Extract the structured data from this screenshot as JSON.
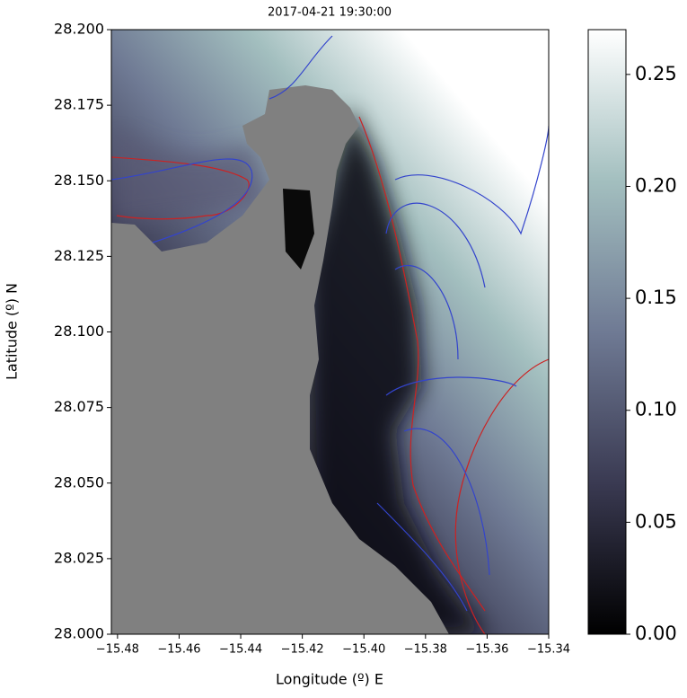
{
  "chart_data": {
    "type": "map",
    "title": "2017-04-21 19:30:00",
    "xlabel": "Longitude (º) E",
    "ylabel": "Latitude (º) N",
    "xlim": [
      -15.482,
      -15.34
    ],
    "ylim": [
      28.0,
      28.2
    ],
    "xticks": [
      {
        "value": -15.48,
        "label": "−15.48"
      },
      {
        "value": -15.46,
        "label": "−15.46"
      },
      {
        "value": -15.44,
        "label": "−15.44"
      },
      {
        "value": -15.42,
        "label": "−15.42"
      },
      {
        "value": -15.4,
        "label": "−15.40"
      },
      {
        "value": -15.38,
        "label": "−15.38"
      },
      {
        "value": -15.36,
        "label": "−15.36"
      },
      {
        "value": -15.34,
        "label": "−15.34"
      }
    ],
    "yticks": [
      {
        "value": 28.0,
        "label": "28.000"
      },
      {
        "value": 28.025,
        "label": "28.025"
      },
      {
        "value": 28.05,
        "label": "28.050"
      },
      {
        "value": 28.075,
        "label": "28.075"
      },
      {
        "value": 28.1,
        "label": "28.100"
      },
      {
        "value": 28.125,
        "label": "28.125"
      },
      {
        "value": 28.15,
        "label": "28.150"
      },
      {
        "value": 28.175,
        "label": "28.175"
      },
      {
        "value": 28.2,
        "label": "28.200"
      }
    ],
    "clim": [
      0,
      0.27
    ],
    "cticks": [
      {
        "value": 0,
        "label": "0.00"
      },
      {
        "value": 0.05,
        "label": "0.05"
      },
      {
        "value": 0.1,
        "label": "0.10"
      },
      {
        "value": 0.15,
        "label": "0.15"
      },
      {
        "value": 0.2,
        "label": "0.20"
      },
      {
        "value": 0.25,
        "label": "0.25"
      }
    ],
    "colormap": [
      "#000000",
      "#3a3a52",
      "#6f7a94",
      "#a3bfbf",
      "#ffffff"
    ],
    "land_color": "#808080"
  }
}
